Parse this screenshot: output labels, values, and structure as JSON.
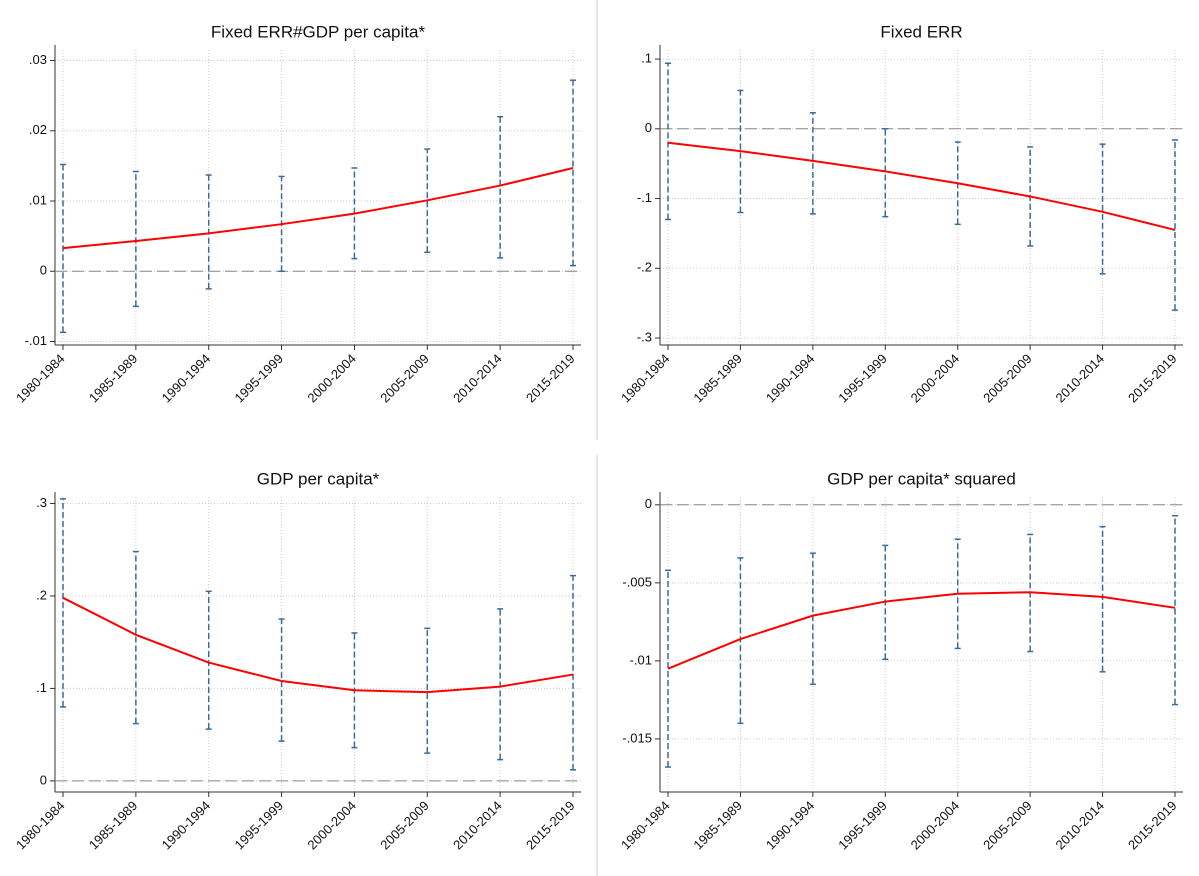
{
  "chart_data": [
    {
      "type": "line",
      "title": "Fixed ERR#GDP per capita*",
      "categories": [
        "1980-1984",
        "1985-1989",
        "1990-1994",
        "1995-1999",
        "2000-2004",
        "2005-2009",
        "2010-2014",
        "2015-2019"
      ],
      "values": [
        0.0033,
        0.0043,
        0.0054,
        0.0067,
        0.0082,
        0.0101,
        0.0122,
        0.0147
      ],
      "lower": [
        -0.0087,
        -0.005,
        -0.0025,
        0.0,
        0.0018,
        0.0027,
        0.0019,
        0.0008
      ],
      "upper": [
        0.0152,
        0.0142,
        0.0137,
        0.0135,
        0.0147,
        0.0174,
        0.022,
        0.0272
      ],
      "color": "#ff0000",
      "ci_color": "#3d6a9b",
      "reference_line": 0,
      "ylim": [
        -0.0105,
        0.0315
      ],
      "yticks": [
        {
          "value": -0.01,
          "label": "-.01"
        },
        0,
        {
          "value": 0.01,
          "label": ".01"
        },
        {
          "value": 0.02,
          "label": ".02"
        },
        {
          "value": 0.03,
          "label": ".03"
        }
      ],
      "grid": true
    },
    {
      "type": "line",
      "title": "Fixed ERR",
      "categories": [
        "1980-1984",
        "1985-1989",
        "1990-1994",
        "1995-1999",
        "2000-2004",
        "2005-2009",
        "2010-2014",
        "2015-2019"
      ],
      "values": [
        -0.02,
        -0.032,
        -0.046,
        -0.061,
        -0.078,
        -0.097,
        -0.119,
        -0.145
      ],
      "lower": [
        -0.13,
        -0.12,
        -0.122,
        -0.126,
        -0.137,
        -0.168,
        -0.208,
        -0.26
      ],
      "upper": [
        0.094,
        0.055,
        0.023,
        0.0,
        -0.019,
        -0.026,
        -0.022,
        -0.016
      ],
      "color": "#ff0000",
      "ci_color": "#3d6a9b",
      "reference_line": 0,
      "ylim": [
        -0.31,
        0.113
      ],
      "yticks": [
        {
          "value": -0.3,
          "label": "-.3"
        },
        {
          "value": -0.2,
          "label": "-.2"
        },
        {
          "value": -0.1,
          "label": "-.1"
        },
        0,
        {
          "value": 0.1,
          "label": ".1"
        }
      ],
      "grid": true
    },
    {
      "type": "line",
      "title": "GDP per capita*",
      "categories": [
        "1980-1984",
        "1985-1989",
        "1990-1994",
        "1995-1999",
        "2000-2004",
        "2005-2009",
        "2010-2014",
        "2015-2019"
      ],
      "values": [
        0.198,
        0.158,
        0.128,
        0.108,
        0.098,
        0.096,
        0.102,
        0.115
      ],
      "lower": [
        0.08,
        0.062,
        0.056,
        0.043,
        0.036,
        0.03,
        0.023,
        0.012
      ],
      "upper": [
        0.305,
        0.248,
        0.205,
        0.175,
        0.16,
        0.165,
        0.186,
        0.222
      ],
      "color": "#ff0000",
      "ci_color": "#3d6a9b",
      "reference_line": 0,
      "ylim": [
        -0.012,
        0.307
      ],
      "yticks": [
        0,
        {
          "value": 0.1,
          "label": ".1"
        },
        {
          "value": 0.2,
          "label": ".2"
        },
        {
          "value": 0.3,
          "label": ".3"
        }
      ],
      "grid": true
    },
    {
      "type": "line",
      "title": "GDP per capita* squared",
      "categories": [
        "1980-1984",
        "1985-1989",
        "1990-1994",
        "1995-1999",
        "2000-2004",
        "2005-2009",
        "2010-2014",
        "2015-2019"
      ],
      "values": [
        -0.0105,
        -0.0086,
        -0.0071,
        -0.0062,
        -0.0057,
        -0.0056,
        -0.0059,
        -0.0066
      ],
      "lower": [
        -0.0168,
        -0.014,
        -0.0115,
        -0.0099,
        -0.0092,
        -0.0094,
        -0.0107,
        -0.0128
      ],
      "upper": [
        -0.0042,
        -0.0034,
        -0.0031,
        -0.0026,
        -0.0022,
        -0.0019,
        -0.0014,
        -0.0007
      ],
      "color": "#ff0000",
      "ci_color": "#3d6a9b",
      "reference_line": 0,
      "ylim": [
        -0.0184,
        0.0005
      ],
      "yticks": [
        {
          "value": -0.015,
          "label": "-.015"
        },
        {
          "value": -0.01,
          "label": "-.01"
        },
        {
          "value": -0.005,
          "label": "-.005"
        },
        0
      ],
      "grid": true
    }
  ]
}
